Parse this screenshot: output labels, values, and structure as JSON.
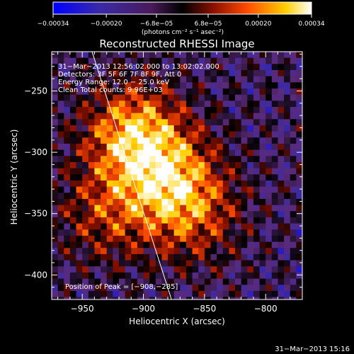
{
  "chart_data": {
    "type": "heatmap",
    "title": "Reconstructed RHESSI Image",
    "xlabel": "Heliocentric X (arcsec)",
    "ylabel": "Heliocentric Y (arcsec)",
    "xlim": [
      -975,
      -770
    ],
    "ylim": [
      -420,
      -218
    ],
    "x_ticks": [
      -950,
      -900,
      -850,
      -800
    ],
    "y_ticks": [
      -250,
      -300,
      -350,
      -400
    ],
    "x_tick_labels": [
      "−950",
      "−900",
      "−850",
      "−800"
    ],
    "y_tick_labels": [
      "−250",
      "−300",
      "−350",
      "−400"
    ],
    "colorbar": {
      "range": [
        -0.00034,
        0.00034
      ],
      "ticks": [
        -0.00034,
        -0.0002,
        -6.8e-05,
        6.8e-05,
        0.0002,
        0.00034
      ],
      "tick_labels": [
        "−0.00034",
        "−0.00020",
        "−6.8e−05",
        "6.8e−05",
        "0.00020",
        "0.00034"
      ],
      "unit_label": "(photons cm⁻² s⁻¹ asec⁻²)",
      "colors": [
        "#0000ff",
        "#3a2aa8",
        "#5a2a7a",
        "#000000",
        "#8a1000",
        "#ff4a00",
        "#ffd000",
        "#ffffff"
      ]
    },
    "annotations": {
      "time_range": "31−Mar−2013 12:56:02.000 to 13:02:02.000",
      "detectors": "Detectors: 3F 5F 6F 7F 8F 9F, Att 0",
      "energy": "Energy Range: 12.0 − 25.0 keV",
      "clean_total": "Clean     Total counts: 9.96E+03",
      "peak": "Position of Peak = [−908,−285]"
    },
    "limb_line": {
      "x_start": -942,
      "y_start": -218,
      "x_end": -877,
      "y_end": -420
    },
    "sources": [
      {
        "x": -908,
        "y": -285,
        "value": 0.00034
      },
      {
        "x": -880,
        "y": -320,
        "value": 0.00026
      },
      {
        "x": -930,
        "y": -350,
        "value": 0.00018
      },
      {
        "x": -860,
        "y": -350,
        "value": 0.0002
      }
    ],
    "grid": false
  },
  "footer": {
    "timestamp": "31−Mar−2013 15:16"
  }
}
